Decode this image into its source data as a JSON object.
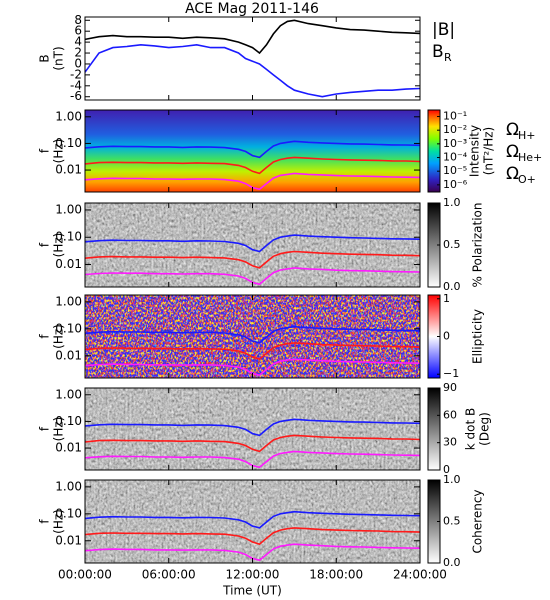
{
  "chart_data": [
    {
      "type": "line",
      "title": "ACE Mag 2011-146",
      "y_label": [
        "B",
        "(nT)"
      ],
      "xlim": [
        0,
        24
      ],
      "ylim": [
        -6.6,
        8.6
      ],
      "yticks": [
        -6,
        -4,
        -2,
        0,
        2,
        4,
        6,
        8
      ],
      "x": [
        0,
        1,
        2,
        3,
        4,
        5,
        6,
        7,
        8,
        9,
        10,
        11,
        11.5,
        12,
        12.5,
        13,
        13.5,
        14,
        14.5,
        15,
        16,
        17,
        18,
        19,
        20,
        21,
        22,
        23,
        24
      ],
      "series": [
        {
          "name": "|B|",
          "color": "#000000",
          "values": [
            4.5,
            5,
            5.2,
            5,
            5,
            4.9,
            4.9,
            4.7,
            4.9,
            4.8,
            4.6,
            4,
            3.5,
            3,
            2,
            3.5,
            5.5,
            7,
            7.8,
            8,
            7.4,
            7,
            6.6,
            6.3,
            6.2,
            6,
            5.8,
            5.7,
            5.6
          ]
        },
        {
          "name": "B",
          "subscript": "R",
          "color": "#1a1aff",
          "values": [
            -1.5,
            2,
            3,
            3.2,
            3.5,
            3.3,
            3,
            3.2,
            3.5,
            3,
            3,
            2,
            1,
            0.5,
            0,
            -1,
            -2,
            -3,
            -4,
            -4.8,
            -5.5,
            -6,
            -5.5,
            -5.2,
            -5,
            -4.8,
            -4.8,
            -4.6,
            -4.5
          ]
        }
      ]
    },
    {
      "type": "spectrogram",
      "y_label": [
        "f",
        "(Hz)"
      ],
      "log_y": true,
      "xlim": [
        0,
        24
      ],
      "ylim": [
        0.0015,
        1.8
      ],
      "yticks": [
        {
          "value": 0.01,
          "label": "0.01"
        },
        {
          "value": 0.1,
          "label": "0.10"
        },
        {
          "value": 1,
          "label": "1.00"
        }
      ],
      "colormap": "rainbow",
      "log_color": true,
      "clim": [
        3e-07,
        0.3
      ],
      "colorbar_label": [
        "Intensity",
        "(nT²/Hz)"
      ],
      "cticks": [
        {
          "value": 0.1,
          "label": "10⁻¹"
        },
        {
          "value": 0.01,
          "label": "10⁻²"
        },
        {
          "value": 0.001,
          "label": "10⁻³"
        },
        {
          "value": 0.0001,
          "label": "10⁻⁴"
        },
        {
          "value": 1e-05,
          "label": "10⁻⁵"
        },
        {
          "value": 1e-06,
          "label": "10⁻⁶"
        }
      ],
      "x": [
        0,
        1,
        2,
        3,
        4,
        5,
        6,
        7,
        8,
        9,
        10,
        11,
        11.5,
        12,
        12.5,
        13,
        13.5,
        14,
        14.5,
        15,
        16,
        17,
        18,
        19,
        20,
        21,
        22,
        23,
        24
      ],
      "overlays": [
        {
          "name": "Ω",
          "subscript": "H+",
          "color": "#1a1aff",
          "values": [
            0.068,
            0.075,
            0.078,
            0.076,
            0.076,
            0.074,
            0.074,
            0.071,
            0.074,
            0.073,
            0.07,
            0.06,
            0.05,
            0.035,
            0.03,
            0.05,
            0.08,
            0.1,
            0.11,
            0.12,
            0.11,
            0.105,
            0.1,
            0.096,
            0.094,
            0.091,
            0.088,
            0.087,
            0.085
          ]
        },
        {
          "name": "Ω",
          "subscript": "He+",
          "color": "#ff1a1a",
          "values": [
            0.017,
            0.019,
            0.0195,
            0.019,
            0.019,
            0.0185,
            0.0185,
            0.018,
            0.0185,
            0.018,
            0.0175,
            0.015,
            0.0125,
            0.009,
            0.0075,
            0.0125,
            0.02,
            0.025,
            0.028,
            0.03,
            0.028,
            0.026,
            0.025,
            0.024,
            0.0235,
            0.023,
            0.022,
            0.0218,
            0.021
          ]
        },
        {
          "name": "Ω",
          "subscript": "O+",
          "color": "#ff1aff",
          "values": [
            0.0043,
            0.0047,
            0.0049,
            0.0048,
            0.0048,
            0.0046,
            0.0046,
            0.0045,
            0.0046,
            0.0046,
            0.0044,
            0.0038,
            0.0031,
            0.0022,
            0.0019,
            0.0031,
            0.005,
            0.0063,
            0.0069,
            0.0075,
            0.0069,
            0.0066,
            0.0062,
            0.006,
            0.0059,
            0.0057,
            0.0055,
            0.0054,
            0.0053
          ]
        }
      ]
    },
    {
      "type": "spectrogram",
      "y_label": [
        "f",
        "(Hz)"
      ],
      "log_y": true,
      "xlim": [
        0,
        24
      ],
      "ylim": [
        0.0015,
        1.8
      ],
      "yticks": [
        {
          "value": 0.01,
          "label": "0.01"
        },
        {
          "value": 0.1,
          "label": "0.10"
        },
        {
          "value": 1,
          "label": "1.00"
        }
      ],
      "colormap": "gray",
      "clim": [
        0,
        1
      ],
      "colorbar_label": [
        "% Polarization"
      ],
      "cticks": [
        {
          "value": 0,
          "label": "0.0"
        },
        {
          "value": 0.5,
          "label": "0.5"
        },
        {
          "value": 1,
          "label": "1.0"
        }
      ]
    },
    {
      "type": "spectrogram",
      "y_label": [
        "f",
        "(Hz)"
      ],
      "log_y": true,
      "xlim": [
        0,
        24
      ],
      "ylim": [
        0.0015,
        1.8
      ],
      "yticks": [
        {
          "value": 0.01,
          "label": "0.01"
        },
        {
          "value": 0.1,
          "label": "0.10"
        },
        {
          "value": 1,
          "label": "1.00"
        }
      ],
      "colormap": "bwr",
      "clim": [
        -1.1,
        1.1
      ],
      "colorbar_label": [
        "Ellipticity"
      ],
      "cticks": [
        {
          "value": -1,
          "label": "−1"
        },
        0,
        1
      ]
    },
    {
      "type": "spectrogram",
      "y_label": [
        "f",
        "(Hz)"
      ],
      "log_y": true,
      "xlim": [
        0,
        24
      ],
      "ylim": [
        0.0015,
        1.8
      ],
      "yticks": [
        {
          "value": 0.01,
          "label": "0.01"
        },
        {
          "value": 0.1,
          "label": "0.10"
        },
        {
          "value": 1,
          "label": "1.00"
        }
      ],
      "colormap": "gray",
      "clim": [
        0,
        90
      ],
      "colorbar_label": [
        "k dot B",
        "(Deg)"
      ],
      "cticks": [
        0,
        30,
        60,
        90
      ]
    },
    {
      "type": "spectrogram",
      "y_label": [
        "f",
        "(Hz)"
      ],
      "log_y": true,
      "xlim": [
        0,
        24
      ],
      "ylim": [
        0.0015,
        1.8
      ],
      "yticks": [
        {
          "value": 0.01,
          "label": "0.01"
        },
        {
          "value": 0.1,
          "label": "0.10"
        },
        {
          "value": 1,
          "label": "1.00"
        }
      ],
      "colormap": "gray",
      "clim": [
        0,
        1
      ],
      "colorbar_label": [
        "Coherency"
      ],
      "cticks": [
        {
          "value": 0,
          "label": "0.0"
        },
        {
          "value": 0.5,
          "label": "0.5"
        },
        {
          "value": 1,
          "label": "1.0"
        }
      ],
      "x_label": "Time (UT)",
      "xticks": [
        {
          "value": 0,
          "label": "00:00:00"
        },
        {
          "value": 6,
          "label": "06:00:00"
        },
        {
          "value": 12,
          "label": "12:00:00"
        },
        {
          "value": 18,
          "label": "18:00:00"
        },
        {
          "value": 24,
          "label": "24:00:00"
        }
      ]
    }
  ]
}
